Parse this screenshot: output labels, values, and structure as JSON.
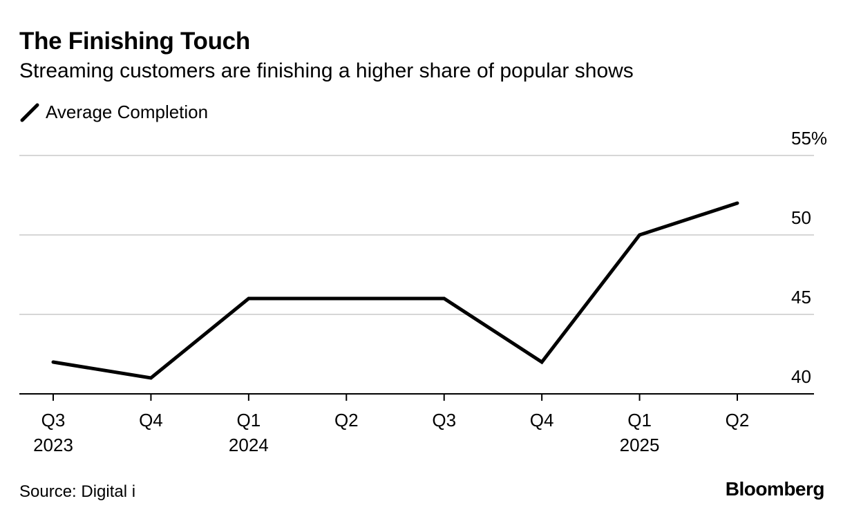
{
  "header": {
    "title": "The Finishing Touch",
    "subtitle": "Streaming customers are finishing a higher share of popular shows"
  },
  "footer": {
    "source": "Source: Digital i",
    "brand": "Bloomberg"
  },
  "chart_data": {
    "type": "line",
    "x_quarters": [
      "Q3",
      "Q4",
      "Q1",
      "Q2",
      "Q3",
      "Q4",
      "Q1",
      "Q2"
    ],
    "x_years": [
      "2023",
      "",
      "2024",
      "",
      "",
      "",
      "2025",
      ""
    ],
    "series": [
      {
        "name": "Average Completion",
        "values": [
          42,
          41,
          46,
          46,
          46,
          42,
          50,
          52
        ],
        "color": "#000000"
      }
    ],
    "ylim": [
      40,
      55
    ],
    "y_ticks": [
      {
        "value": 40,
        "label": "40"
      },
      {
        "value": 45,
        "label": "45"
      },
      {
        "value": 50,
        "label": "50"
      },
      {
        "value": 55,
        "label": "55%"
      }
    ],
    "grid": true,
    "y_axis_side": "right",
    "legend_position": "top-left"
  }
}
